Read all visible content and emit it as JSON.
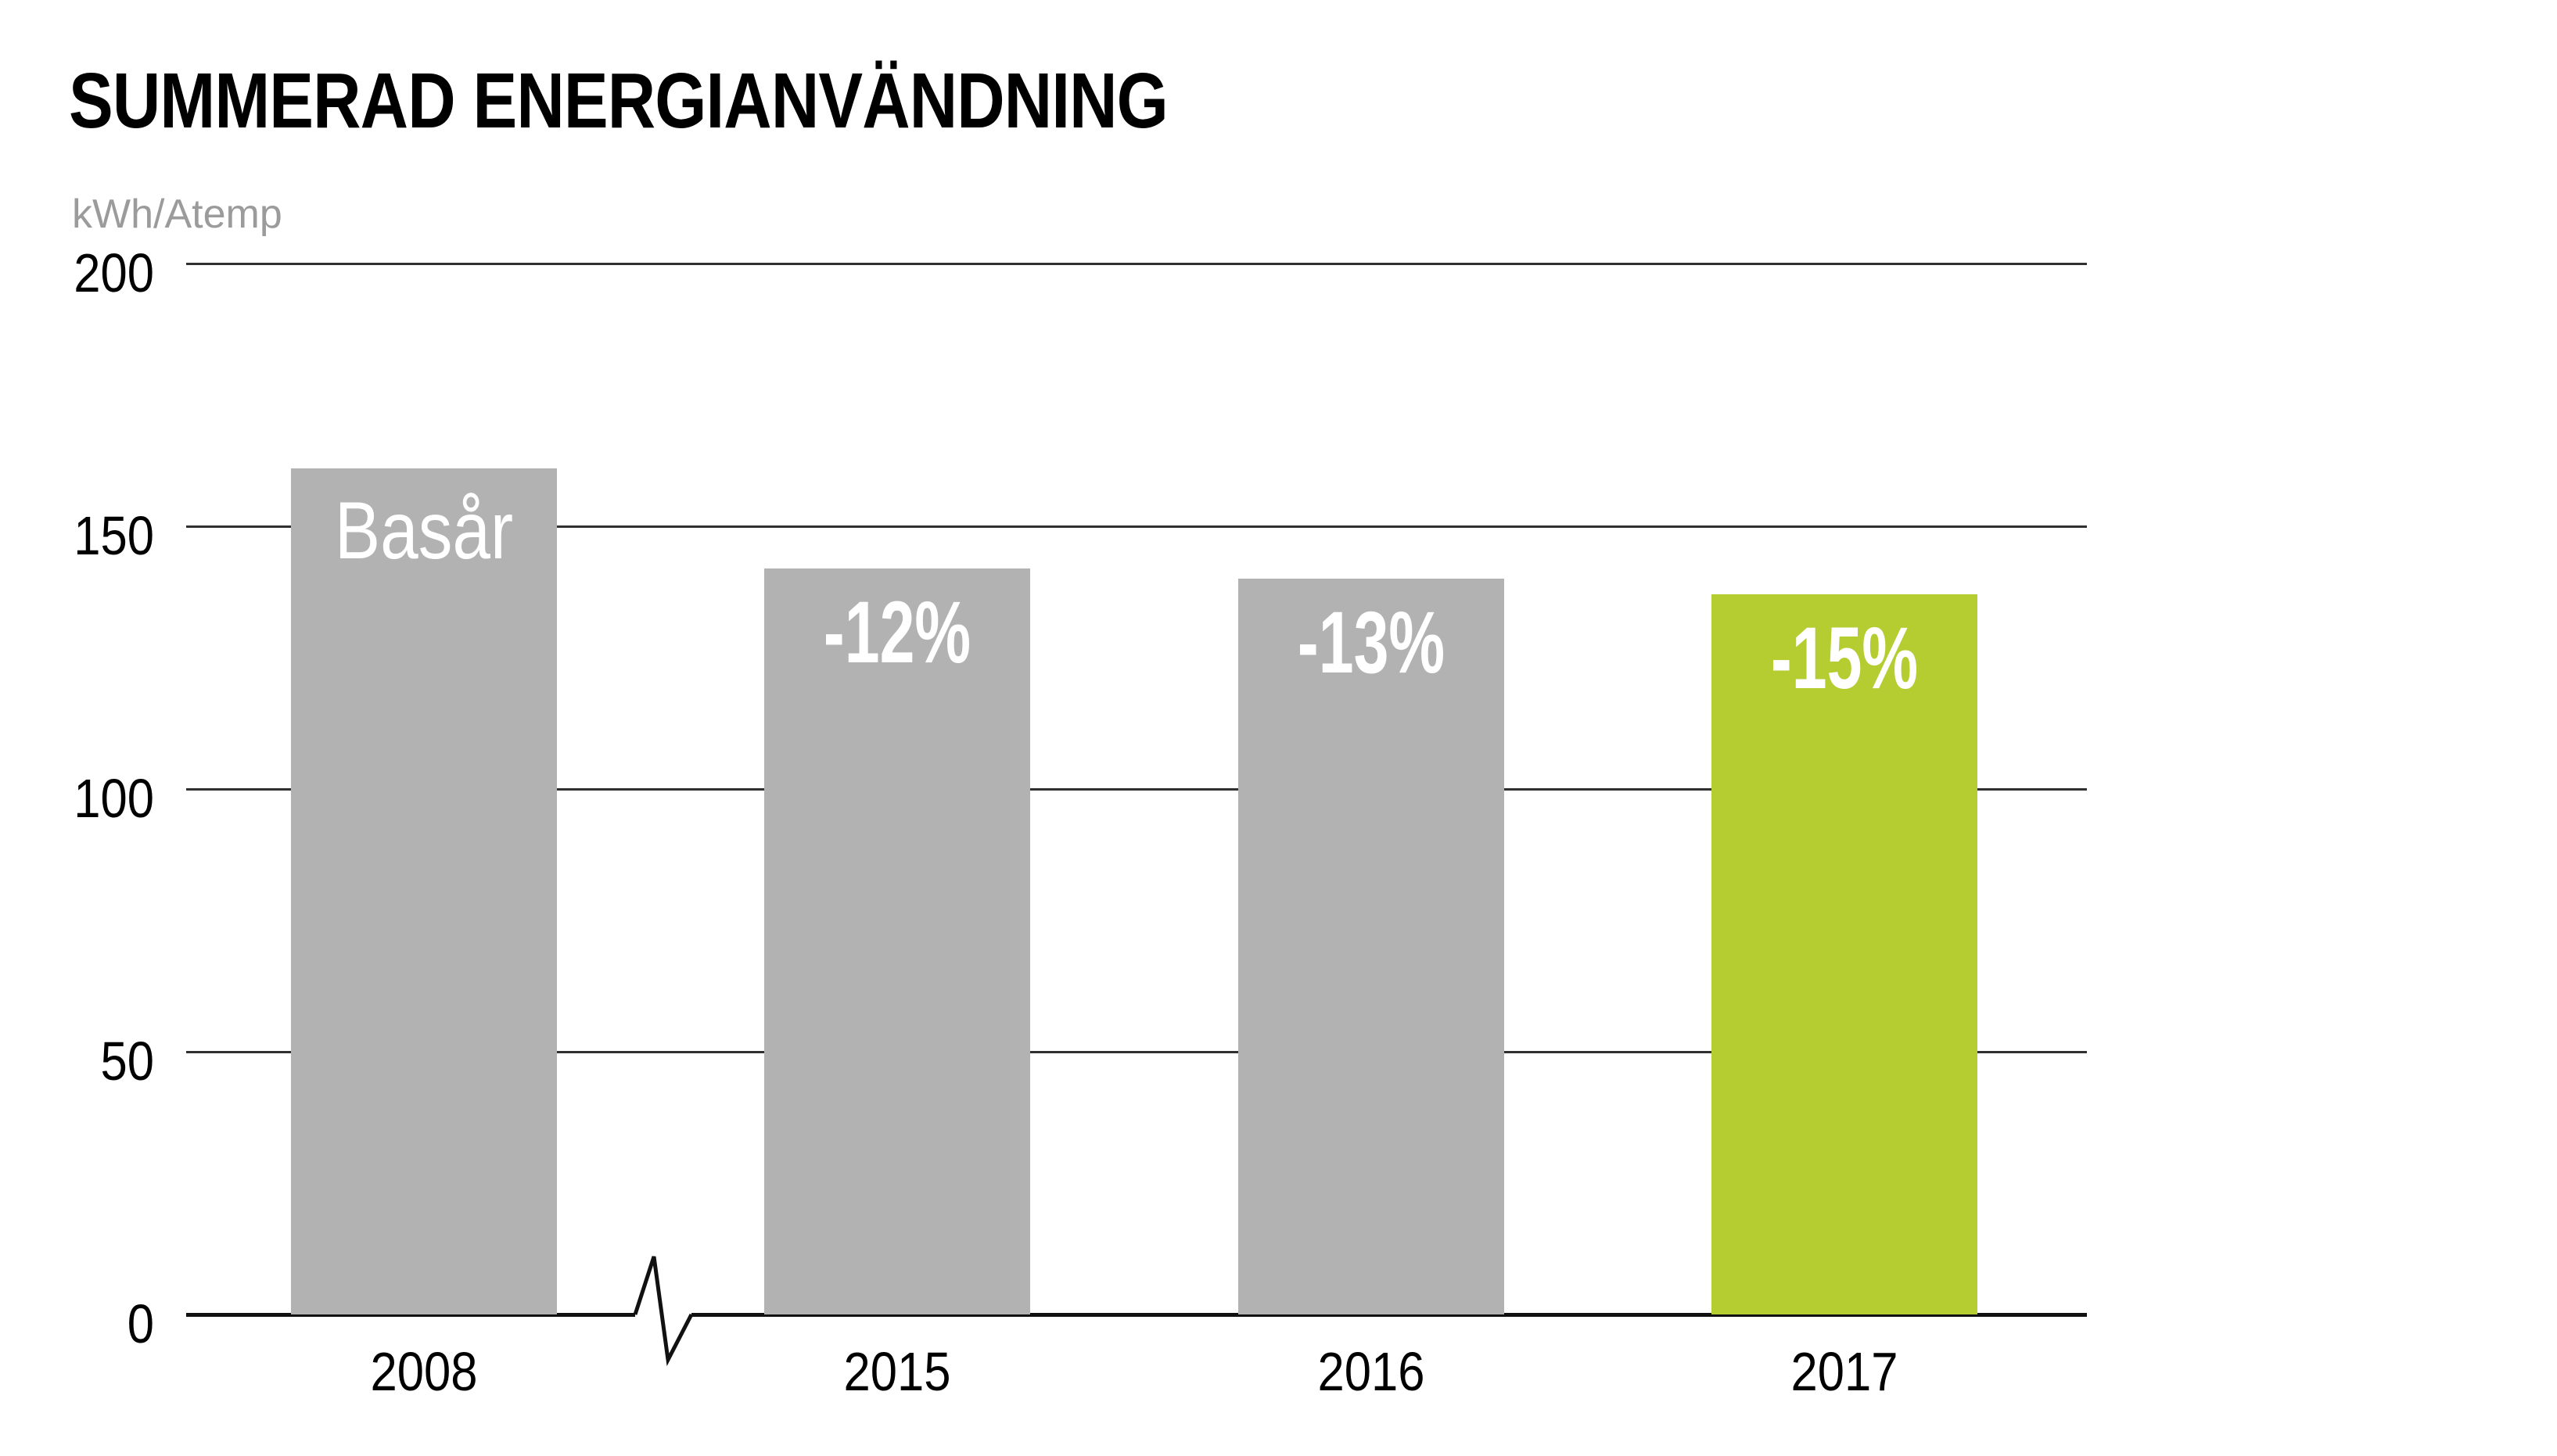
{
  "title": "SUMMERAD ENERGIANVÄNDNING",
  "unit_label": "kWh/Atemp",
  "colors": {
    "bar_gray": "#b2b2b2",
    "bar_green": "#b6cd32",
    "bar_label_text": "#ffffff",
    "grid_line": "#303030",
    "axis_line": "#111111",
    "unit_text": "#9b9b9b",
    "tick_text": "#000000",
    "background": "#ffffff"
  },
  "chart_data": {
    "type": "bar",
    "title": "SUMMERAD ENERGIANVÄNDNING",
    "xlabel": "",
    "ylabel": "kWh/Atemp",
    "categories": [
      "2008",
      "2015",
      "2016",
      "2017"
    ],
    "values": [
      161,
      142,
      140,
      137
    ],
    "bar_labels": [
      "Basår",
      "-12%",
      "-13%",
      "-15%"
    ],
    "bar_label_styles": [
      "light",
      "bold",
      "bold",
      "bold"
    ],
    "bar_colors": [
      "gray",
      "gray",
      "gray",
      "green"
    ],
    "base_year_note": "2008 is base year (Basår); later bars show percent reduction vs base year",
    "ylim": [
      0,
      200
    ],
    "yticks": [
      200,
      150,
      100,
      50,
      0
    ],
    "grid": true,
    "legend": "none",
    "axis_break": "zigzag break on x-axis between 2008 and 2015"
  }
}
